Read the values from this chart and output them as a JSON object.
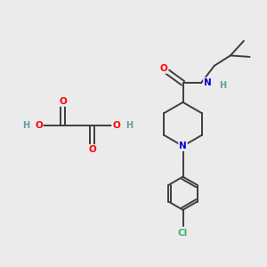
{
  "bg_color": "#ebebeb",
  "bond_color": "#3d3d3d",
  "bond_width": 1.4,
  "font_size_atom": 7.5,
  "colors": {
    "C": "#3d3d3d",
    "O": "#ff0000",
    "N": "#0000cc",
    "Cl": "#3cb371",
    "H": "#5f9ea0"
  },
  "scale": 10
}
